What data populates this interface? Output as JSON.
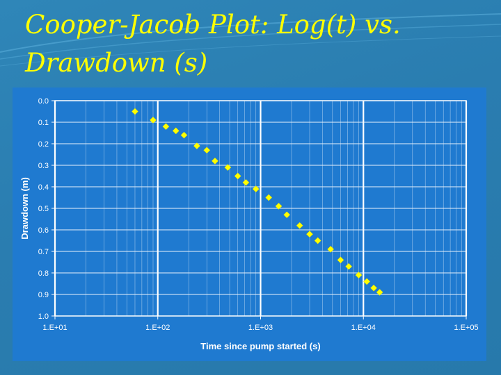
{
  "slide": {
    "title_line1": "Cooper-Jacob Plot: Log(t) vs.",
    "title_line2": "Drawdown (s)"
  },
  "colors": {
    "background": "#2a7db0",
    "plot_area": "#1f7ad0",
    "points": "#ffff00",
    "title": "#ffff00",
    "text": "#ffffff"
  },
  "chart_data": {
    "type": "scatter",
    "title": "",
    "xlabel": "Time since pump started (s)",
    "ylabel": "Drawdown (m)",
    "x_scale": "log",
    "xlim": [
      10,
      100000
    ],
    "ylim": [
      0.0,
      1.0
    ],
    "y_inverted": true,
    "grid": true,
    "legend": "none",
    "x_tick_labels": [
      "1.E+01",
      "1.E+02",
      "1.E+03",
      "1.E+04",
      "1.E+05"
    ],
    "y_tick_labels": [
      "0.0",
      "0.1",
      "0.2",
      "0.3",
      "0.4",
      "0.5",
      "0.6",
      "0.7",
      "0.8",
      "0.9",
      "1.0"
    ],
    "points": [
      {
        "x": 60,
        "y": 0.05
      },
      {
        "x": 90,
        "y": 0.09
      },
      {
        "x": 120,
        "y": 0.12
      },
      {
        "x": 150,
        "y": 0.14
      },
      {
        "x": 180,
        "y": 0.16
      },
      {
        "x": 240,
        "y": 0.21
      },
      {
        "x": 300,
        "y": 0.23
      },
      {
        "x": 360,
        "y": 0.28
      },
      {
        "x": 480,
        "y": 0.31
      },
      {
        "x": 600,
        "y": 0.35
      },
      {
        "x": 720,
        "y": 0.38
      },
      {
        "x": 900,
        "y": 0.41
      },
      {
        "x": 1200,
        "y": 0.45
      },
      {
        "x": 1500,
        "y": 0.49
      },
      {
        "x": 1800,
        "y": 0.53
      },
      {
        "x": 2400,
        "y": 0.58
      },
      {
        "x": 3000,
        "y": 0.62
      },
      {
        "x": 3600,
        "y": 0.65
      },
      {
        "x": 4800,
        "y": 0.69
      },
      {
        "x": 6000,
        "y": 0.74
      },
      {
        "x": 7200,
        "y": 0.77
      },
      {
        "x": 9000,
        "y": 0.81
      },
      {
        "x": 10800,
        "y": 0.84
      },
      {
        "x": 12600,
        "y": 0.87
      },
      {
        "x": 14400,
        "y": 0.89
      }
    ]
  }
}
